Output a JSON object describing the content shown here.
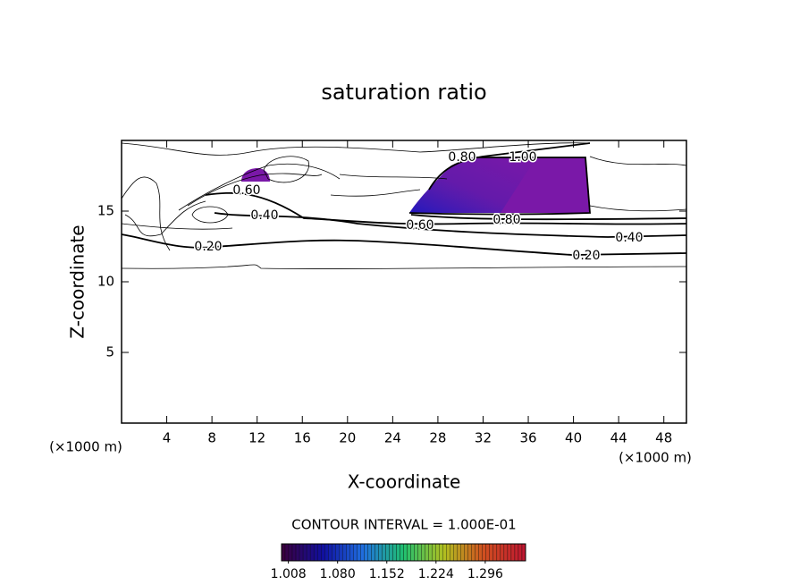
{
  "chart_data": {
    "type": "contour",
    "title": "saturation ratio",
    "x_label": "X-coordinate",
    "y_label": "Z-coordinate",
    "axis_unit": "(×1000 m)",
    "xlim": [
      0,
      50
    ],
    "xticks": [
      4,
      8,
      12,
      16,
      20,
      24,
      28,
      32,
      36,
      40,
      44,
      48
    ],
    "ylim": [
      0,
      20
    ],
    "yticks": [
      5,
      10,
      15
    ],
    "contour_levels": [
      {
        "value": 0.2,
        "label": "0.20"
      },
      {
        "value": 0.4,
        "label": "0.40"
      },
      {
        "value": 0.6,
        "label": "0.60"
      },
      {
        "value": 0.8,
        "label": "0.80"
      },
      {
        "value": 1.0,
        "label": "1.00"
      }
    ],
    "annotation": "CONTOUR INTERVAL = 1.000E-01",
    "fill_color": "#7a18a8",
    "colorbar": {
      "clim": [
        0.998,
        1.355
      ],
      "colors": [
        "#3a0040",
        "#1010a0",
        "#2070e0",
        "#20c070",
        "#b0c020",
        "#d05020",
        "#c01830"
      ],
      "ticks": [
        {
          "value": 1.008,
          "label": "1.008"
        },
        {
          "value": 1.08,
          "label": "1.080"
        },
        {
          "value": 1.152,
          "label": "1.152"
        },
        {
          "value": 1.224,
          "label": "1.224"
        },
        {
          "value": 1.296,
          "label": "1.296"
        }
      ]
    }
  }
}
